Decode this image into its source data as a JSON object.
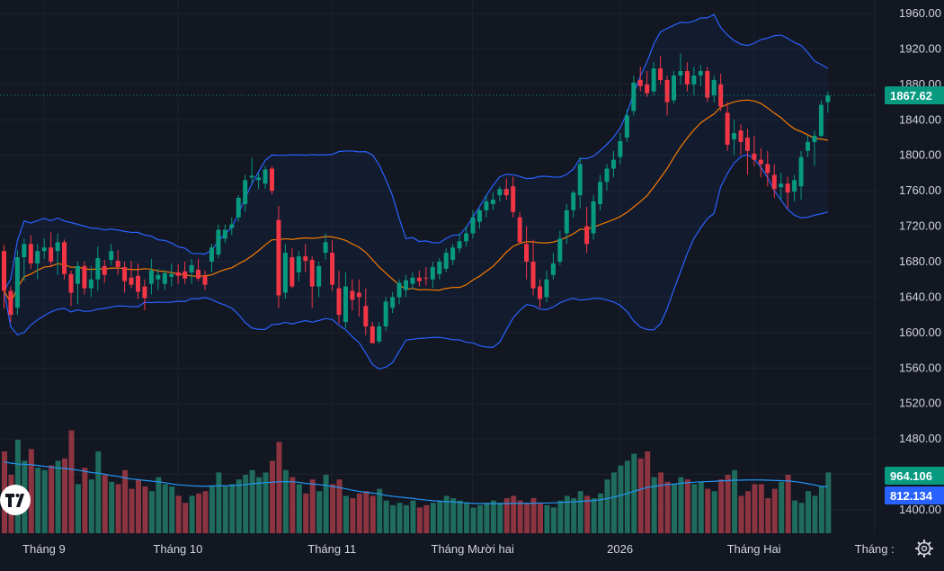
{
  "chart_data": {
    "type": "candlestick",
    "price_axis": {
      "ticks": [
        "1960.00",
        "1920.00",
        "1880.00",
        "1840.00",
        "1800.00",
        "1760.00",
        "1720.00",
        "1680.00",
        "1640.00",
        "1600.00",
        "1560.00",
        "1520.00",
        "1480.00",
        "1440.00",
        "1400.00"
      ],
      "range": [
        1380,
        1980
      ]
    },
    "time_axis": {
      "labels": [
        {
          "text": "Tháng 9",
          "bar": 2
        },
        {
          "text": "Tháng 10",
          "bar": 22
        },
        {
          "text": "Tháng 11",
          "bar": 45
        },
        {
          "text": "Tháng Mười hai",
          "bar": 66
        },
        {
          "text": "2026",
          "bar": 88
        },
        {
          "text": "Tháng Hai",
          "bar": 108
        },
        {
          "text": "Tháng :",
          "bar": 126
        }
      ]
    },
    "last_price": {
      "text": "1867.62",
      "value": 1867.62,
      "color": "#089981"
    },
    "volume_labels": [
      {
        "text": "964.106",
        "color": "#089981"
      },
      {
        "text": "812.134",
        "color": "#2962ff"
      }
    ],
    "colors": {
      "up": "#089981",
      "down": "#f23645",
      "up_volume": "#1f6b5c",
      "down_volume": "#8c3440",
      "basis": "#f57c00",
      "bands": "#2962ff",
      "band_fill": "#2962ff",
      "volume_ma": "#2196f3",
      "background": "#131722"
    },
    "candles": [
      [
        1692,
        1699,
        1627,
        1647
      ],
      [
        1647,
        1652,
        1612,
        1620
      ],
      [
        1628,
        1693,
        1620,
        1685
      ],
      [
        1685,
        1706,
        1658,
        1700
      ],
      [
        1700,
        1710,
        1672,
        1678
      ],
      [
        1678,
        1700,
        1660,
        1692
      ],
      [
        1692,
        1706,
        1683,
        1696
      ],
      [
        1696,
        1713,
        1674,
        1680
      ],
      [
        1692,
        1712,
        1665,
        1702
      ],
      [
        1702,
        1705,
        1660,
        1666
      ],
      [
        1666,
        1670,
        1630,
        1645
      ],
      [
        1655,
        1680,
        1632,
        1675
      ],
      [
        1675,
        1680,
        1643,
        1650
      ],
      [
        1650,
        1675,
        1640,
        1660
      ],
      [
        1660,
        1697,
        1647,
        1684
      ],
      [
        1675,
        1682,
        1656,
        1665
      ],
      [
        1682,
        1700,
        1676,
        1692
      ],
      [
        1681,
        1693,
        1665,
        1674
      ],
      [
        1674,
        1680,
        1645,
        1658
      ],
      [
        1662,
        1681,
        1650,
        1654
      ],
      [
        1664,
        1678,
        1638,
        1646
      ],
      [
        1652,
        1660,
        1625,
        1639
      ],
      [
        1655,
        1683,
        1643,
        1670
      ],
      [
        1660,
        1672,
        1648,
        1665
      ],
      [
        1655,
        1670,
        1648,
        1667
      ],
      [
        1663,
        1678,
        1652,
        1666
      ],
      [
        1668,
        1677,
        1655,
        1664
      ],
      [
        1669,
        1680,
        1655,
        1661
      ],
      [
        1668,
        1683,
        1655,
        1676
      ],
      [
        1671,
        1683,
        1658,
        1661
      ],
      [
        1664,
        1670,
        1648,
        1654
      ],
      [
        1680,
        1700,
        1668,
        1696
      ],
      [
        1688,
        1722,
        1684,
        1716
      ],
      [
        1706,
        1722,
        1701,
        1716
      ],
      [
        1718,
        1730,
        1710,
        1722
      ],
      [
        1730,
        1755,
        1725,
        1752
      ],
      [
        1745,
        1778,
        1736,
        1772
      ],
      [
        1775,
        1797,
        1768,
        1777
      ],
      [
        1772,
        1780,
        1762,
        1775
      ],
      [
        1768,
        1788,
        1762,
        1784
      ],
      [
        1785,
        1788,
        1756,
        1760
      ],
      [
        1727,
        1743,
        1628,
        1642
      ],
      [
        1645,
        1700,
        1638,
        1690
      ],
      [
        1685,
        1695,
        1650,
        1652
      ],
      [
        1668,
        1692,
        1658,
        1686
      ],
      [
        1686,
        1700,
        1668,
        1681
      ],
      [
        1682,
        1686,
        1628,
        1652
      ],
      [
        1652,
        1680,
        1640,
        1675
      ],
      [
        1690,
        1712,
        1682,
        1702
      ],
      [
        1690,
        1704,
        1647,
        1654
      ],
      [
        1650,
        1670,
        1610,
        1620
      ],
      [
        1612,
        1668,
        1605,
        1652
      ],
      [
        1647,
        1660,
        1625,
        1637
      ],
      [
        1645,
        1660,
        1618,
        1640
      ],
      [
        1630,
        1650,
        1597,
        1607
      ],
      [
        1607,
        1612,
        1590,
        1588
      ],
      [
        1590,
        1612,
        1588,
        1607
      ],
      [
        1607,
        1640,
        1602,
        1635
      ],
      [
        1628,
        1646,
        1622,
        1640
      ],
      [
        1640,
        1660,
        1632,
        1656
      ],
      [
        1648,
        1665,
        1640,
        1659
      ],
      [
        1655,
        1668,
        1649,
        1662
      ],
      [
        1662,
        1670,
        1652,
        1658
      ],
      [
        1662,
        1674,
        1653,
        1661
      ],
      [
        1660,
        1680,
        1650,
        1674
      ],
      [
        1666,
        1684,
        1660,
        1680
      ],
      [
        1672,
        1695,
        1668,
        1690
      ],
      [
        1682,
        1700,
        1676,
        1696
      ],
      [
        1695,
        1712,
        1690,
        1703
      ],
      [
        1703,
        1720,
        1697,
        1712
      ],
      [
        1712,
        1738,
        1706,
        1730
      ],
      [
        1725,
        1740,
        1717,
        1738
      ],
      [
        1738,
        1755,
        1730,
        1748
      ],
      [
        1745,
        1758,
        1738,
        1750
      ],
      [
        1755,
        1765,
        1748,
        1762
      ],
      [
        1762,
        1774,
        1750,
        1755
      ],
      [
        1765,
        1776,
        1730,
        1736
      ],
      [
        1730,
        1736,
        1700,
        1702
      ],
      [
        1700,
        1720,
        1660,
        1680
      ],
      [
        1680,
        1705,
        1642,
        1650
      ],
      [
        1652,
        1660,
        1628,
        1638
      ],
      [
        1640,
        1670,
        1634,
        1660
      ],
      [
        1665,
        1690,
        1660,
        1678
      ],
      [
        1680,
        1715,
        1676,
        1706
      ],
      [
        1712,
        1745,
        1700,
        1738
      ],
      [
        1738,
        1760,
        1730,
        1758
      ],
      [
        1755,
        1798,
        1740,
        1790
      ],
      [
        1720,
        1742,
        1690,
        1700
      ],
      [
        1712,
        1755,
        1705,
        1748
      ],
      [
        1745,
        1778,
        1738,
        1770
      ],
      [
        1770,
        1790,
        1760,
        1785
      ],
      [
        1785,
        1805,
        1775,
        1795
      ],
      [
        1798,
        1825,
        1790,
        1816
      ],
      [
        1820,
        1852,
        1815,
        1845
      ],
      [
        1850,
        1890,
        1845,
        1882
      ],
      [
        1885,
        1900,
        1872,
        1878
      ],
      [
        1880,
        1895,
        1866,
        1870
      ],
      [
        1872,
        1905,
        1868,
        1898
      ],
      [
        1898,
        1912,
        1880,
        1885
      ],
      [
        1885,
        1890,
        1845,
        1860
      ],
      [
        1862,
        1895,
        1858,
        1890
      ],
      [
        1890,
        1915,
        1880,
        1895
      ],
      [
        1895,
        1905,
        1872,
        1880
      ],
      [
        1880,
        1900,
        1868,
        1890
      ],
      [
        1890,
        1902,
        1878,
        1895
      ],
      [
        1895,
        1900,
        1860,
        1865
      ],
      [
        1868,
        1890,
        1860,
        1885
      ],
      [
        1880,
        1892,
        1850,
        1855
      ],
      [
        1848,
        1860,
        1805,
        1812
      ],
      [
        1818,
        1840,
        1800,
        1825
      ],
      [
        1828,
        1835,
        1800,
        1815
      ],
      [
        1820,
        1830,
        1778,
        1805
      ],
      [
        1802,
        1822,
        1788,
        1795
      ],
      [
        1795,
        1808,
        1775,
        1790
      ],
      [
        1790,
        1805,
        1765,
        1780
      ],
      [
        1778,
        1790,
        1752,
        1762
      ],
      [
        1764,
        1780,
        1750,
        1768
      ],
      [
        1768,
        1776,
        1740,
        1758
      ],
      [
        1759,
        1778,
        1748,
        1772
      ],
      [
        1765,
        1805,
        1750,
        1798
      ],
      [
        1805,
        1822,
        1798,
        1815
      ],
      [
        1815,
        1828,
        1788,
        1822
      ],
      [
        1822,
        1862,
        1820,
        1857
      ],
      [
        1860,
        1872,
        1848,
        1867.62
      ]
    ],
    "volume": [
      3.5,
      2.5,
      4,
      3.1,
      3.6,
      2.8,
      2.7,
      2.9,
      3.1,
      3.2,
      4.4,
      2.1,
      2.8,
      2.3,
      3.5,
      2.5,
      2.2,
      2.1,
      2.7,
      1.9,
      2.3,
      2,
      1.8,
      2.4,
      2.1,
      2,
      1.6,
      1.3,
      1.6,
      1.7,
      1.8,
      2,
      2.6,
      2,
      2.1,
      2.3,
      2.5,
      2.7,
      2.4,
      2.6,
      3.1,
      3.9,
      2.7,
      2.4,
      2.1,
      1.7,
      2.3,
      1.8,
      2.5,
      2.1,
      2.3,
      1.6,
      1.5,
      1.7,
      1.8,
      1.6,
      1.9,
      1.4,
      1.2,
      1.3,
      1.2,
      1.4,
      1.1,
      1.2,
      1.3,
      1.4,
      1.6,
      1.5,
      1.4,
      1.3,
      1.1,
      1.2,
      1.3,
      1.4,
      1.3,
      1.5,
      1.6,
      1.4,
      1.3,
      1.5,
      1.3,
      1.2,
      1.1,
      1.4,
      1.6,
      1.5,
      1.8,
      1.6,
      1.5,
      1.7,
      2.3,
      2.6,
      2.9,
      3.1,
      3.4,
      3.2,
      3.5,
      2.4,
      2.6,
      2.2,
      2.1,
      2.4,
      2.3,
      2.1,
      2.2,
      1.9,
      1.8,
      2.3,
      2.5,
      2.7,
      1.6,
      1.8,
      2.1,
      2.1,
      1.5,
      1.9,
      2.2,
      2.5,
      1.4,
      1.3,
      1.8,
      1.6,
      2,
      2.6
    ],
    "volume_ma": [
      3.05,
      3.0,
      2.96,
      2.95,
      2.93,
      2.9,
      2.86,
      2.83,
      2.79,
      2.77,
      2.74,
      2.7,
      2.65,
      2.6,
      2.57,
      2.53,
      2.47,
      2.43,
      2.37,
      2.32,
      2.29,
      2.26,
      2.23,
      2.2,
      2.16,
      2.11,
      2.07,
      2.05,
      2.03,
      2.02,
      2.01,
      2.02,
      2.03,
      2.03,
      2.04,
      2.05,
      2.08,
      2.12,
      2.14,
      2.16,
      2.18,
      2.2,
      2.21,
      2.2,
      2.18,
      2.13,
      2.11,
      2.08,
      2.05,
      2.0,
      1.96,
      1.9,
      1.84,
      1.79,
      1.75,
      1.72,
      1.68,
      1.62,
      1.58,
      1.55,
      1.52,
      1.49,
      1.45,
      1.42,
      1.39,
      1.37,
      1.35,
      1.34,
      1.32,
      1.3,
      1.28,
      1.27,
      1.27,
      1.27,
      1.27,
      1.27,
      1.28,
      1.28,
      1.28,
      1.28,
      1.29,
      1.29,
      1.3,
      1.31,
      1.33,
      1.34,
      1.36,
      1.38,
      1.4,
      1.43,
      1.48,
      1.54,
      1.62,
      1.7,
      1.79,
      1.87,
      1.96,
      2.0,
      2.05,
      2.08,
      2.1,
      2.14,
      2.16,
      2.18,
      2.2,
      2.21,
      2.22,
      2.24,
      2.25,
      2.27,
      2.27,
      2.28,
      2.28,
      2.28,
      2.27,
      2.26,
      2.25,
      2.24,
      2.21,
      2.17,
      2.12,
      2.07,
      2.0,
      2.0
    ]
  }
}
